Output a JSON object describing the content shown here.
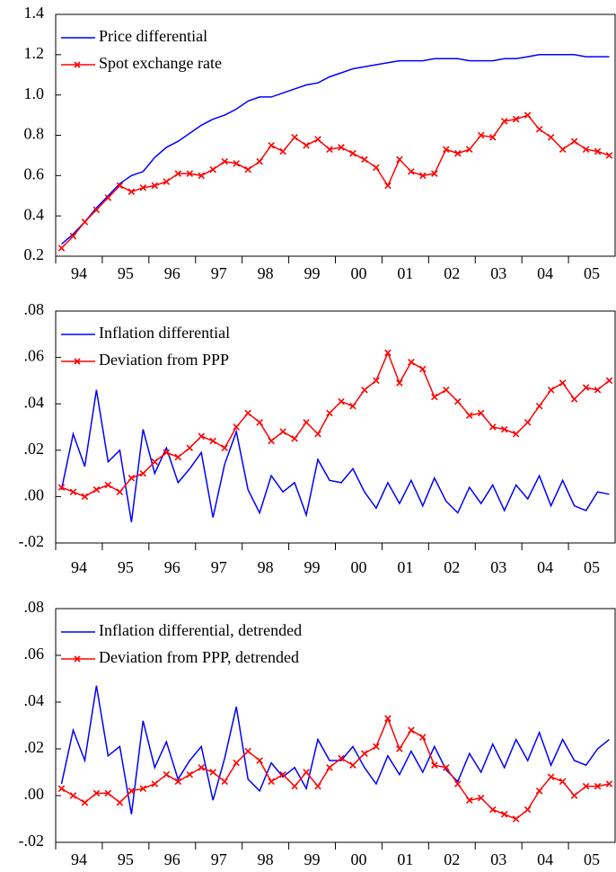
{
  "chart_data": [
    {
      "type": "line",
      "x": [
        1994.125,
        1994.375,
        1994.625,
        1994.875,
        1995.125,
        1995.375,
        1995.625,
        1995.875,
        1996.125,
        1996.375,
        1996.625,
        1996.875,
        1997.125,
        1997.375,
        1997.625,
        1997.875,
        1998.125,
        1998.375,
        1998.625,
        1998.875,
        1999.125,
        1999.375,
        1999.625,
        1999.875,
        2000.125,
        2000.375,
        2000.625,
        2000.875,
        2001.125,
        2001.375,
        2001.625,
        2001.875,
        2002.125,
        2002.375,
        2002.625,
        2002.875,
        2003.125,
        2003.375,
        2003.625,
        2003.875,
        2004.125,
        2004.375,
        2004.625,
        2004.875,
        2005.125,
        2005.375,
        2005.625,
        2005.875
      ],
      "xlim": [
        1994,
        2006
      ],
      "xticks": [
        {
          "value": 1994,
          "label": "94"
        },
        {
          "value": 1995,
          "label": "95"
        },
        {
          "value": 1996,
          "label": "96"
        },
        {
          "value": 1997,
          "label": "97"
        },
        {
          "value": 1998,
          "label": "98"
        },
        {
          "value": 1999,
          "label": "99"
        },
        {
          "value": 2000,
          "label": "00"
        },
        {
          "value": 2001,
          "label": "01"
        },
        {
          "value": 2002,
          "label": "02"
        },
        {
          "value": 2003,
          "label": "03"
        },
        {
          "value": 2004,
          "label": "04"
        },
        {
          "value": 2005,
          "label": "05"
        }
      ],
      "ylim": [
        0.2,
        1.4
      ],
      "yticks": [
        0.2,
        0.4,
        0.6,
        0.8,
        {
          "value": 1,
          "label": "1.0"
        },
        1.2,
        1.4
      ],
      "legend": "upper-left",
      "series": [
        {
          "name": "Price differential",
          "color": "#0000ff",
          "values": [
            0.26,
            0.31,
            0.37,
            0.44,
            0.5,
            0.56,
            0.6,
            0.62,
            0.69,
            0.74,
            0.77,
            0.81,
            0.85,
            0.88,
            0.9,
            0.93,
            0.97,
            0.99,
            0.99,
            1.01,
            1.03,
            1.05,
            1.06,
            1.09,
            1.11,
            1.13,
            1.14,
            1.15,
            1.16,
            1.17,
            1.17,
            1.17,
            1.18,
            1.18,
            1.18,
            1.17,
            1.17,
            1.17,
            1.18,
            1.18,
            1.19,
            1.2,
            1.2,
            1.2,
            1.2,
            1.19,
            1.19,
            1.19
          ]
        },
        {
          "name": "Spot exchange rate",
          "color": "#ff0000",
          "marker": "x",
          "values": [
            0.24,
            0.3,
            0.37,
            0.43,
            0.49,
            0.55,
            0.52,
            0.54,
            0.55,
            0.57,
            0.61,
            0.61,
            0.6,
            0.63,
            0.67,
            0.66,
            0.63,
            0.67,
            0.75,
            0.72,
            0.79,
            0.75,
            0.78,
            0.73,
            0.74,
            0.71,
            0.68,
            0.64,
            0.55,
            0.68,
            0.62,
            0.6,
            0.61,
            0.73,
            0.71,
            0.73,
            0.8,
            0.79,
            0.87,
            0.88,
            0.9,
            0.83,
            0.79,
            0.73,
            0.77,
            0.73,
            0.72,
            0.7
          ]
        }
      ]
    },
    {
      "type": "line",
      "x": [
        1994.125,
        1994.375,
        1994.625,
        1994.875,
        1995.125,
        1995.375,
        1995.625,
        1995.875,
        1996.125,
        1996.375,
        1996.625,
        1996.875,
        1997.125,
        1997.375,
        1997.625,
        1997.875,
        1998.125,
        1998.375,
        1998.625,
        1998.875,
        1999.125,
        1999.375,
        1999.625,
        1999.875,
        2000.125,
        2000.375,
        2000.625,
        2000.875,
        2001.125,
        2001.375,
        2001.625,
        2001.875,
        2002.125,
        2002.375,
        2002.625,
        2002.875,
        2003.125,
        2003.375,
        2003.625,
        2003.875,
        2004.125,
        2004.375,
        2004.625,
        2004.875,
        2005.125,
        2005.375,
        2005.625,
        2005.875
      ],
      "xlim": [
        1994,
        2006
      ],
      "xticks": [
        {
          "value": 1994,
          "label": "94"
        },
        {
          "value": 1995,
          "label": "95"
        },
        {
          "value": 1996,
          "label": "96"
        },
        {
          "value": 1997,
          "label": "97"
        },
        {
          "value": 1998,
          "label": "98"
        },
        {
          "value": 1999,
          "label": "99"
        },
        {
          "value": 2000,
          "label": "00"
        },
        {
          "value": 2001,
          "label": "01"
        },
        {
          "value": 2002,
          "label": "02"
        },
        {
          "value": 2003,
          "label": "03"
        },
        {
          "value": 2004,
          "label": "04"
        },
        {
          "value": 2005,
          "label": "05"
        }
      ],
      "ylim": [
        -0.02,
        0.08
      ],
      "yticks": [
        {
          "value": -0.02,
          "label": "-.02"
        },
        {
          "value": 0,
          "label": ".00"
        },
        {
          "value": 0.02,
          "label": ".02"
        },
        {
          "value": 0.04,
          "label": ".04"
        },
        {
          "value": 0.06,
          "label": ".06"
        },
        {
          "value": 0.08,
          "label": ".08"
        }
      ],
      "legend": "upper-left",
      "series": [
        {
          "name": "Inflation differential",
          "color": "#0000ff",
          "values": [
            0.003,
            0.027,
            0.013,
            0.046,
            0.015,
            0.02,
            -0.011,
            0.029,
            0.01,
            0.021,
            0.006,
            0.012,
            0.019,
            -0.009,
            0.014,
            0.028,
            0.003,
            -0.007,
            0.009,
            0.002,
            0.006,
            -0.008,
            0.016,
            0.007,
            0.006,
            0.012,
            0.002,
            -0.005,
            0.006,
            -0.003,
            0.007,
            -0.004,
            0.008,
            -0.002,
            -0.007,
            0.004,
            -0.003,
            0.005,
            -0.006,
            0.005,
            -0.001,
            0.009,
            -0.004,
            0.007,
            -0.004,
            -0.006,
            0.002,
            0.001
          ]
        },
        {
          "name": "Deviation from PPP",
          "color": "#ff0000",
          "marker": "x",
          "values": [
            0.004,
            0.002,
            0.0,
            0.003,
            0.005,
            0.002,
            0.008,
            0.01,
            0.015,
            0.019,
            0.017,
            0.021,
            0.026,
            0.024,
            0.021,
            0.03,
            0.036,
            0.032,
            0.024,
            0.028,
            0.025,
            0.032,
            0.027,
            0.036,
            0.041,
            0.039,
            0.046,
            0.05,
            0.062,
            0.049,
            0.058,
            0.055,
            0.043,
            0.046,
            0.041,
            0.035,
            0.036,
            0.03,
            0.029,
            0.027,
            0.032,
            0.039,
            0.046,
            0.049,
            0.042,
            0.047,
            0.046,
            0.05
          ]
        }
      ]
    },
    {
      "type": "line",
      "x": [
        1994.125,
        1994.375,
        1994.625,
        1994.875,
        1995.125,
        1995.375,
        1995.625,
        1995.875,
        1996.125,
        1996.375,
        1996.625,
        1996.875,
        1997.125,
        1997.375,
        1997.625,
        1997.875,
        1998.125,
        1998.375,
        1998.625,
        1998.875,
        1999.125,
        1999.375,
        1999.625,
        1999.875,
        2000.125,
        2000.375,
        2000.625,
        2000.875,
        2001.125,
        2001.375,
        2001.625,
        2001.875,
        2002.125,
        2002.375,
        2002.625,
        2002.875,
        2003.125,
        2003.375,
        2003.625,
        2003.875,
        2004.125,
        2004.375,
        2004.625,
        2004.875,
        2005.125,
        2005.375,
        2005.625,
        2005.875
      ],
      "xlim": [
        1994,
        2006
      ],
      "xticks": [
        {
          "value": 1994,
          "label": "94"
        },
        {
          "value": 1995,
          "label": "95"
        },
        {
          "value": 1996,
          "label": "96"
        },
        {
          "value": 1997,
          "label": "97"
        },
        {
          "value": 1998,
          "label": "98"
        },
        {
          "value": 1999,
          "label": "99"
        },
        {
          "value": 2000,
          "label": "00"
        },
        {
          "value": 2001,
          "label": "01"
        },
        {
          "value": 2002,
          "label": "02"
        },
        {
          "value": 2003,
          "label": "03"
        },
        {
          "value": 2004,
          "label": "04"
        },
        {
          "value": 2005,
          "label": "05"
        }
      ],
      "ylim": [
        -0.02,
        0.08
      ],
      "yticks": [
        {
          "value": -0.02,
          "label": "-.02"
        },
        {
          "value": 0,
          "label": ".00"
        },
        {
          "value": 0.02,
          "label": ".02"
        },
        {
          "value": 0.04,
          "label": ".04"
        },
        {
          "value": 0.06,
          "label": ".06"
        },
        {
          "value": 0.08,
          "label": ".08"
        }
      ],
      "legend": "upper-left",
      "series": [
        {
          "name": "Inflation differential, detrended",
          "color": "#0000ff",
          "values": [
            0.005,
            0.028,
            0.015,
            0.047,
            0.017,
            0.021,
            -0.008,
            0.032,
            0.012,
            0.023,
            0.007,
            0.015,
            0.021,
            -0.002,
            0.016,
            0.038,
            0.007,
            0.002,
            0.014,
            0.008,
            0.012,
            0.003,
            0.024,
            0.015,
            0.015,
            0.021,
            0.012,
            0.005,
            0.017,
            0.009,
            0.019,
            0.01,
            0.021,
            0.011,
            0.006,
            0.018,
            0.01,
            0.022,
            0.012,
            0.024,
            0.015,
            0.027,
            0.013,
            0.024,
            0.015,
            0.013,
            0.02,
            0.024
          ]
        },
        {
          "name": "Deviation from PPP, detrended",
          "color": "#ff0000",
          "marker": "x",
          "values": [
            0.003,
            0.0,
            -0.003,
            0.001,
            0.001,
            -0.003,
            0.002,
            0.003,
            0.005,
            0.009,
            0.006,
            0.009,
            0.012,
            0.01,
            0.006,
            0.014,
            0.019,
            0.015,
            0.006,
            0.009,
            0.004,
            0.01,
            0.004,
            0.012,
            0.016,
            0.013,
            0.018,
            0.021,
            0.033,
            0.02,
            0.028,
            0.025,
            0.013,
            0.012,
            0.005,
            -0.002,
            -0.001,
            -0.006,
            -0.008,
            -0.01,
            -0.006,
            0.002,
            0.008,
            0.006,
            0.0,
            0.004,
            0.004,
            0.005
          ]
        }
      ]
    }
  ]
}
